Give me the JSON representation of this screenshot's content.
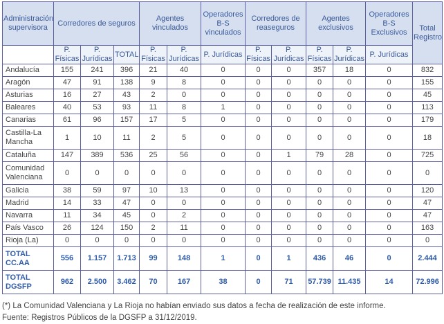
{
  "header": {
    "admin": "Administración supervisora",
    "groups": [
      "Corredores de seguros",
      "Agentes vinculados",
      "Operadores B-S vinculados",
      "Corredores de reaseguros",
      "Agentes exclusivos",
      "Operadores B-S Exclusivos",
      "Total Registro"
    ],
    "sub": [
      "P. Físicas",
      "P. Jurídicas",
      "TOTAL",
      "P. Físicas",
      "P. Jurídicas",
      "P. Jurídicas",
      "P. Físicas",
      "P. Jurídicas",
      "P. Físicas",
      "P. Jurídicas",
      "P. Jurídicas"
    ]
  },
  "rows": [
    {
      "name": "Andalucía",
      "v": [
        "155",
        "241",
        "396",
        "21",
        "40",
        "0",
        "0",
        "0",
        "357",
        "18",
        "0",
        "832"
      ]
    },
    {
      "name": "Aragón",
      "v": [
        "47",
        "91",
        "138",
        "9",
        "8",
        "0",
        "0",
        "0",
        "0",
        "0",
        "0",
        "155"
      ]
    },
    {
      "name": "Asturias",
      "v": [
        "16",
        "27",
        "43",
        "2",
        "0",
        "0",
        "0",
        "0",
        "0",
        "0",
        "0",
        "45"
      ]
    },
    {
      "name": "Baleares",
      "v": [
        "40",
        "53",
        "93",
        "11",
        "8",
        "1",
        "0",
        "0",
        "0",
        "0",
        "0",
        "113"
      ]
    },
    {
      "name": "Canarias",
      "v": [
        "61",
        "96",
        "157",
        "17",
        "5",
        "0",
        "0",
        "0",
        "0",
        "0",
        "0",
        "179"
      ]
    },
    {
      "name": "Castilla-La Mancha",
      "v": [
        "1",
        "10",
        "11",
        "2",
        "5",
        "0",
        "0",
        "0",
        "0",
        "0",
        "0",
        "18"
      ]
    },
    {
      "name": "Cataluña",
      "v": [
        "147",
        "389",
        "536",
        "25",
        "56",
        "0",
        "0",
        "1",
        "79",
        "28",
        "0",
        "725"
      ]
    },
    {
      "name": "Comunidad Valenciana",
      "v": [
        "0",
        "0",
        "0",
        "0",
        "0",
        "0",
        "0",
        "0",
        "0",
        "0",
        "0",
        "0"
      ]
    },
    {
      "name": "Galicia",
      "v": [
        "38",
        "59",
        "97",
        "10",
        "13",
        "0",
        "0",
        "0",
        "0",
        "0",
        "0",
        "120"
      ]
    },
    {
      "name": "Madrid",
      "v": [
        "14",
        "33",
        "47",
        "0",
        "0",
        "0",
        "0",
        "0",
        "0",
        "0",
        "0",
        "47"
      ]
    },
    {
      "name": "Navarra",
      "v": [
        "11",
        "34",
        "45",
        "0",
        "2",
        "0",
        "0",
        "0",
        "0",
        "0",
        "0",
        "47"
      ]
    },
    {
      "name": "País Vasco",
      "v": [
        "26",
        "124",
        "150",
        "2",
        "11",
        "0",
        "0",
        "0",
        "0",
        "0",
        "0",
        "163"
      ]
    },
    {
      "name": "Rioja (La)",
      "v": [
        "0",
        "0",
        "0",
        "0",
        "0",
        "0",
        "0",
        "0",
        "0",
        "0",
        "0",
        "0"
      ]
    },
    {
      "name": "TOTAL CC.AA",
      "v": [
        "556",
        "1.157",
        "1.713",
        "99",
        "148",
        "1",
        "0",
        "1",
        "436",
        "46",
        "0",
        "2.444"
      ]
    },
    {
      "name": "TOTAL DGSFP",
      "v": [
        "962",
        "2.500",
        "3.462",
        "70",
        "167",
        "38",
        "0",
        "71",
        "57.739",
        "11.435",
        "14",
        "72.996"
      ]
    }
  ],
  "footnotes": [
    "(*) La Comunidad Valenciana y La Rioja no habían enviado sus datos a fecha de realización de este informe.",
    "Fuente: Registros Públicos de la DGSFP a 31/12/2019."
  ]
}
